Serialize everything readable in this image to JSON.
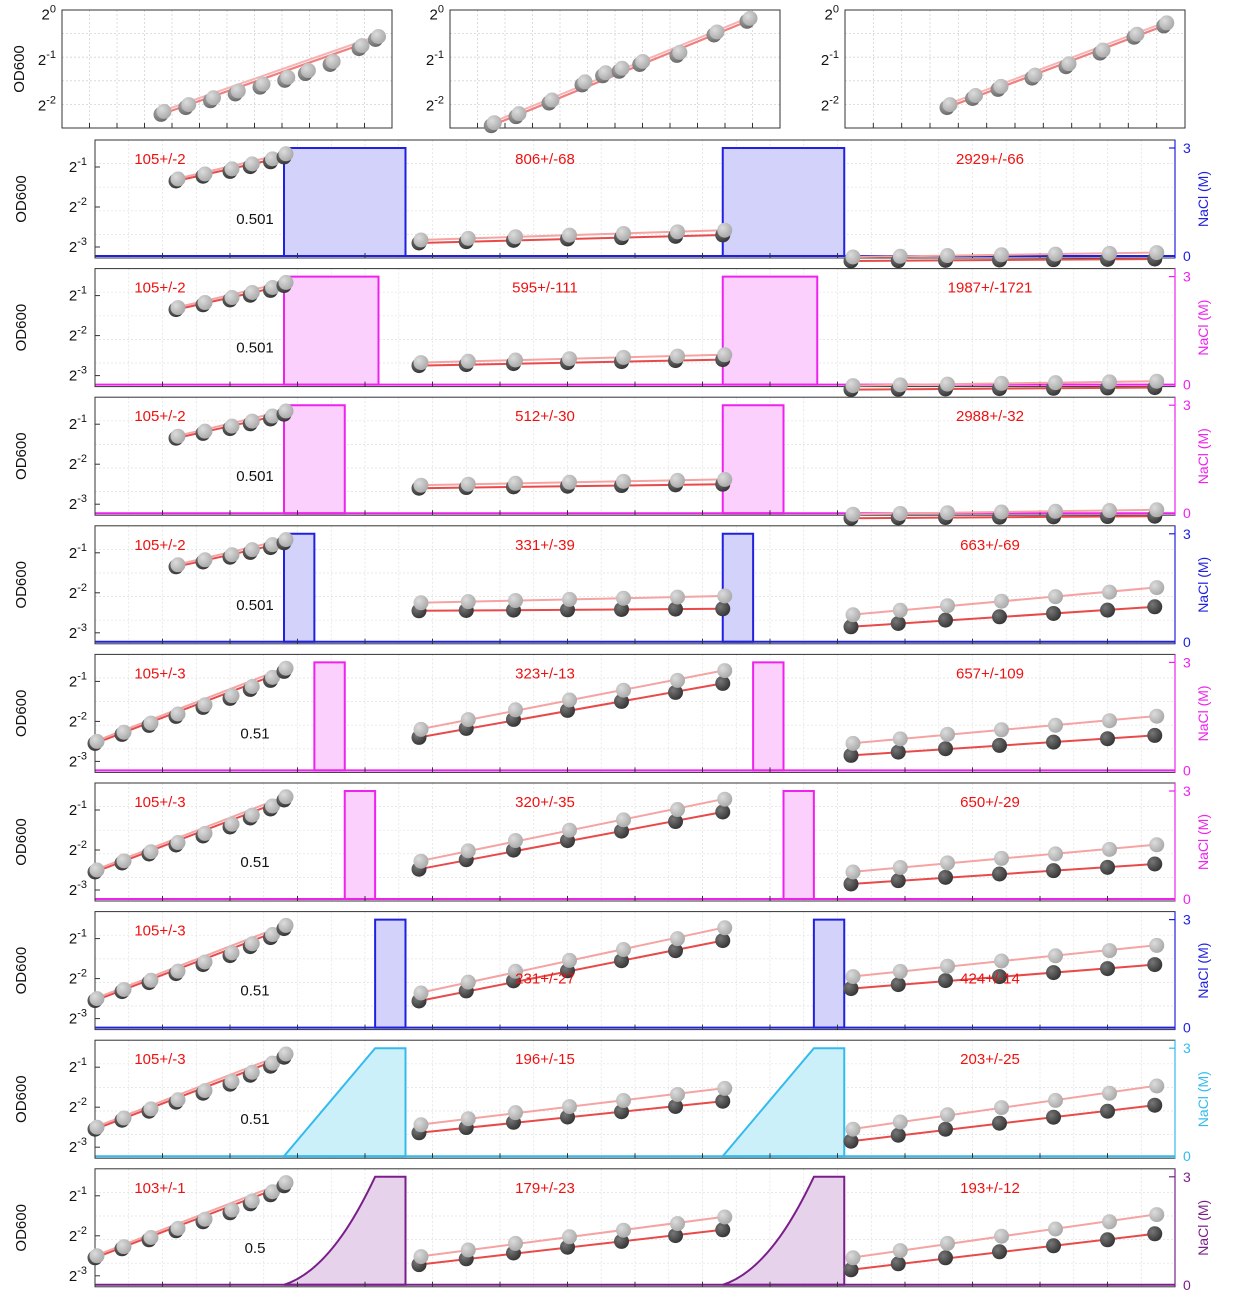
{
  "chart_data": {
    "type": "scatter",
    "y_scale": "log2",
    "grid": true,
    "top_panels": [
      {
        "ylabel": "OD600",
        "y_ticks": [
          "0",
          "-1",
          "-2"
        ],
        "ylim_exp": [
          -2.5,
          0.1
        ],
        "series": [
          {
            "name": "",
            "x": [
              1.2,
              1.5,
              1.8,
              2.1,
              2.4,
              2.7,
              2.95,
              3.25,
              3.6,
              3.8
            ],
            "log2_od": [
              -2.2,
              -2.05,
              -1.9,
              -1.75,
              -1.6,
              -1.45,
              -1.3,
              -1.1,
              -0.75,
              -0.55
            ]
          }
        ]
      },
      {
        "ylabel": "",
        "y_ticks": [
          "0",
          "-1",
          "-2"
        ],
        "ylim_exp": [
          -2.5,
          0.1
        ],
        "series": [
          {
            "name": "",
            "x": [
              0.5,
              0.8,
              1.2,
              1.6,
              1.85,
              2.05,
              2.3,
              2.75,
              3.2,
              3.6
            ],
            "log2_od": [
              -2.45,
              -2.25,
              -1.95,
              -1.55,
              -1.35,
              -1.25,
              -1.1,
              -0.9,
              -0.45,
              -0.15
            ]
          }
        ]
      },
      {
        "ylabel": "",
        "y_ticks": [
          "0",
          "-1",
          "-2"
        ],
        "ylim_exp": [
          -2.5,
          0.1
        ],
        "series": [
          {
            "name": "",
            "x": [
              1.2,
              1.5,
              1.8,
              2.2,
              2.6,
              3.0,
              3.4,
              3.75
            ],
            "log2_od": [
              -2.05,
              -1.85,
              -1.65,
              -1.4,
              -1.15,
              -0.85,
              -0.5,
              -0.25
            ]
          }
        ]
      }
    ],
    "rows": [
      {
        "ylabel": "OD600",
        "y2label": "NaCl (M)",
        "y2_ticks": [
          "3",
          "0"
        ],
        "color": "#2020e0",
        "fill": "#d2d2fa",
        "shape": "square",
        "pulses": [
          [
            2.8,
            4.6
          ],
          [
            9.3,
            11.1
          ]
        ],
        "labels": {
          "phase1": "105+/-2",
          "transition": "0.501",
          "phase2": "806+/-68",
          "phase3": "2929+/-66"
        }
      },
      {
        "ylabel": "OD600",
        "y2label": "NaCl (M)",
        "y2_ticks": [
          "3",
          "0"
        ],
        "color": "#ee22ee",
        "fill": "#fcd0fc",
        "shape": "square",
        "pulses": [
          [
            2.8,
            4.2
          ],
          [
            9.3,
            10.7
          ]
        ],
        "labels": {
          "phase1": "105+/-2",
          "transition": "0.501",
          "phase2": "595+/-111",
          "phase3": "1987+/-1721"
        }
      },
      {
        "ylabel": "OD600",
        "y2label": "NaCl (M)",
        "y2_ticks": [
          "3",
          "0"
        ],
        "color": "#ee22ee",
        "fill": "#fcd0fc",
        "shape": "square",
        "pulses": [
          [
            2.8,
            3.7
          ],
          [
            9.3,
            10.2
          ]
        ],
        "labels": {
          "phase1": "105+/-2",
          "transition": "0.501",
          "phase2": "512+/-30",
          "phase3": "2988+/-32"
        }
      },
      {
        "ylabel": "OD600",
        "y2label": "NaCl (M)",
        "y2_ticks": [
          "3",
          "0"
        ],
        "color": "#2020e0",
        "fill": "#d2d2fa",
        "shape": "square",
        "pulses": [
          [
            2.8,
            3.25
          ],
          [
            9.3,
            9.75
          ]
        ],
        "labels": {
          "phase1": "105+/-2",
          "transition": "0.501",
          "phase2": "331+/-39",
          "phase3": "663+/-69"
        }
      },
      {
        "ylabel": "OD600",
        "y2label": "NaCl (M)",
        "y2_ticks": [
          "3",
          "0"
        ],
        "color": "#ee22ee",
        "fill": "#fcd0fc",
        "shape": "square",
        "pulses": [
          [
            3.25,
            3.7
          ],
          [
            9.75,
            10.2
          ]
        ],
        "labels": {
          "phase1": "105+/-3",
          "transition": "0.51",
          "phase2": "323+/-13",
          "phase3": "657+/-109"
        }
      },
      {
        "ylabel": "OD600",
        "y2label": "NaCl (M)",
        "y2_ticks": [
          "3",
          "0"
        ],
        "color": "#ee22ee",
        "fill": "#fcd0fc",
        "shape": "square",
        "pulses": [
          [
            3.7,
            4.15
          ],
          [
            10.2,
            10.65
          ]
        ],
        "labels": {
          "phase1": "105+/-3",
          "transition": "0.51",
          "phase2": "320+/-35",
          "phase3": "650+/-29"
        }
      },
      {
        "ylabel": "OD600",
        "y2label": "NaCl (M)",
        "y2_ticks": [
          "3",
          "0"
        ],
        "color": "#2020e0",
        "fill": "#d2d2fa",
        "shape": "square",
        "pulses": [
          [
            4.15,
            4.6
          ],
          [
            10.65,
            11.1
          ]
        ],
        "labels": {
          "phase1": "105+/-3",
          "transition": "0.51",
          "phase2": "231+/-27",
          "phase3": "424+/-14"
        }
      },
      {
        "ylabel": "OD600",
        "y2label": "NaCl (M)",
        "y2_ticks": [
          "3",
          "0"
        ],
        "color": "#33bbee",
        "fill": "#ccf0fa",
        "shape": "ramp",
        "pulses": [
          [
            2.8,
            4.6
          ],
          [
            9.3,
            11.1
          ]
        ],
        "labels": {
          "phase1": "105+/-3",
          "transition": "0.51",
          "phase2": "196+/-15",
          "phase3": "203+/-25"
        }
      },
      {
        "ylabel": "OD600",
        "y2label": "NaCl (M)",
        "y2_ticks": [
          "3",
          "0"
        ],
        "color": "#7a1f8a",
        "fill": "#e6d2ea",
        "shape": "curve",
        "pulses": [
          [
            2.8,
            4.6
          ],
          [
            9.3,
            11.1
          ]
        ],
        "labels": {
          "phase1": "103+/-1",
          "transition": "0.5",
          "phase2": "179+/-23",
          "phase3": "193+/-12"
        }
      }
    ],
    "y_ticks_lower": [
      "-1",
      "-2",
      "-3"
    ]
  }
}
